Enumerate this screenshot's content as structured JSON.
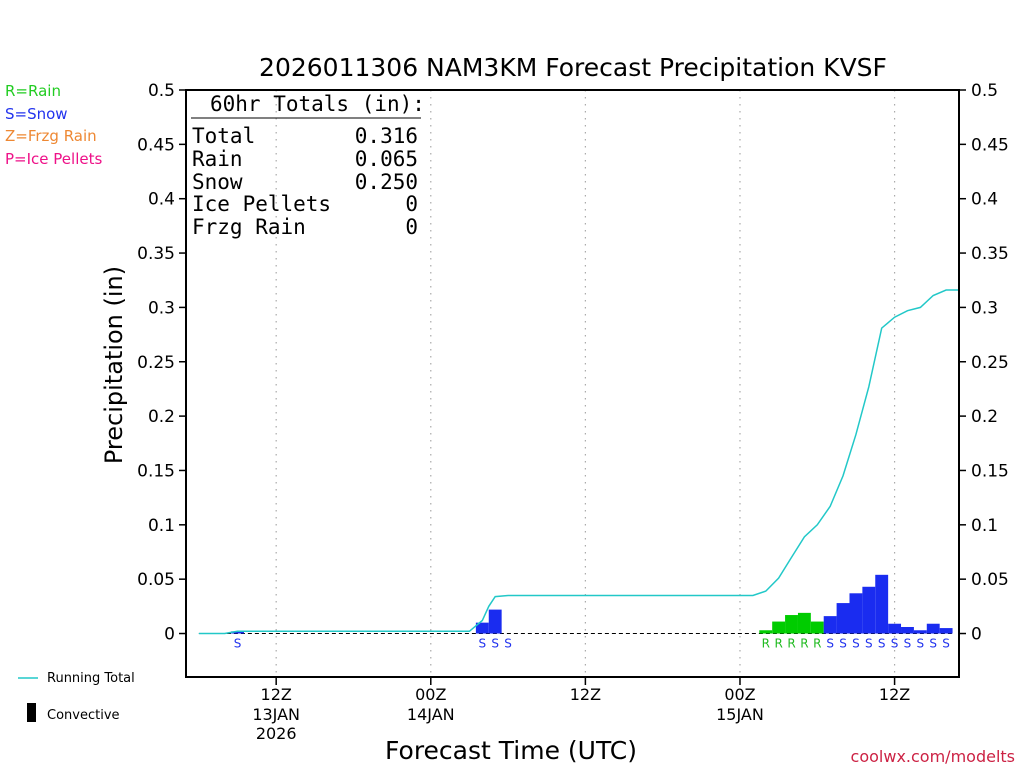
{
  "chart_data": {
    "type": "bar",
    "title": "2026011306 NAM3KM Forecast Precipitation KVSF",
    "xlabel": "Forecast Time (UTC)",
    "ylabel": "Precipitation (in)",
    "ylim": [
      -0.04,
      0.5
    ],
    "yticks": [
      0,
      0.05,
      0.1,
      0.15,
      0.2,
      0.25,
      0.3,
      0.35,
      0.4,
      0.45,
      0.5
    ],
    "ytick_labels": [
      "0",
      "0.05",
      "0.1",
      "0.15",
      "0.2",
      "0.25",
      "0.3",
      "0.35",
      "0.4",
      "0.45",
      "0.5"
    ],
    "xlim": [
      -1,
      59
    ],
    "x_unit": "forecast hour from 2026-01-13 06Z",
    "xticks": [
      {
        "x": 6,
        "line1": "12Z",
        "line2": "13JAN",
        "line3": "2026"
      },
      {
        "x": 18,
        "line1": "00Z",
        "line2": "14JAN",
        "line3": ""
      },
      {
        "x": 30,
        "line1": "12Z",
        "line2": "",
        "line3": ""
      },
      {
        "x": 42,
        "line1": "00Z",
        "line2": "15JAN",
        "line3": ""
      },
      {
        "x": 54,
        "line1": "12Z",
        "line2": "",
        "line3": ""
      }
    ],
    "bars": [
      {
        "x": 3,
        "value": 0.002,
        "type": "S"
      },
      {
        "x": 22,
        "value": 0.01,
        "type": "S"
      },
      {
        "x": 23,
        "value": 0.022,
        "type": "S"
      },
      {
        "x": 24,
        "value": 0.0,
        "type": "S"
      },
      {
        "x": 44,
        "value": 0.003,
        "type": "R"
      },
      {
        "x": 45,
        "value": 0.011,
        "type": "R"
      },
      {
        "x": 46,
        "value": 0.017,
        "type": "R"
      },
      {
        "x": 47,
        "value": 0.019,
        "type": "R"
      },
      {
        "x": 48,
        "value": 0.011,
        "type": "R"
      },
      {
        "x": 49,
        "value": 0.016,
        "type": "S"
      },
      {
        "x": 50,
        "value": 0.028,
        "type": "S"
      },
      {
        "x": 51,
        "value": 0.037,
        "type": "S"
      },
      {
        "x": 52,
        "value": 0.043,
        "type": "S"
      },
      {
        "x": 53,
        "value": 0.054,
        "type": "S"
      },
      {
        "x": 54,
        "value": 0.009,
        "type": "S"
      },
      {
        "x": 55,
        "value": 0.006,
        "type": "S"
      },
      {
        "x": 56,
        "value": 0.003,
        "type": "S"
      },
      {
        "x": 57,
        "value": 0.009,
        "type": "S"
      },
      {
        "x": 58,
        "value": 0.005,
        "type": "S"
      }
    ],
    "running_total": {
      "x": [
        0,
        2,
        3,
        4,
        20,
        21,
        22,
        22.5,
        23,
        24,
        42,
        43,
        44,
        45,
        46,
        47,
        48,
        49,
        50,
        51,
        52,
        53,
        54,
        55,
        56,
        57,
        58,
        59
      ],
      "y": [
        0,
        0,
        0.002,
        0.002,
        0.002,
        0.002,
        0.012,
        0.025,
        0.034,
        0.035,
        0.035,
        0.035,
        0.039,
        0.051,
        0.07,
        0.089,
        0.1,
        0.117,
        0.145,
        0.183,
        0.227,
        0.281,
        0.291,
        0.297,
        0.3,
        0.311,
        0.316,
        0.316
      ]
    },
    "legend": {
      "items": [
        {
          "label": "R=Rain",
          "color": "#22cc22"
        },
        {
          "label": "S=Snow",
          "color": "#2233ee"
        },
        {
          "label": "Z=Frzg Rain",
          "color": "#ee8833"
        },
        {
          "label": "P=Ice Pellets",
          "color": "#ee1188"
        }
      ],
      "running_total_label": "Running Total",
      "convective_label": "Convective",
      "placement": "left"
    },
    "totals": {
      "heading": "60hr Totals (in):",
      "rows": [
        {
          "label": "Total",
          "value": "0.316"
        },
        {
          "label": "Rain",
          "value": "0.065"
        },
        {
          "label": "Snow",
          "value": "0.250"
        },
        {
          "label": "Ice Pellets",
          "value": "0"
        },
        {
          "label": "Frzg Rain",
          "value": "0"
        }
      ]
    },
    "colors": {
      "rain": "#00cc00",
      "snow": "#1a2cf0",
      "running_total": "#22c8c8",
      "grid": "#aaaaaa",
      "credit": "#cc2244"
    }
  },
  "credit": "coolwx.com/modelts"
}
